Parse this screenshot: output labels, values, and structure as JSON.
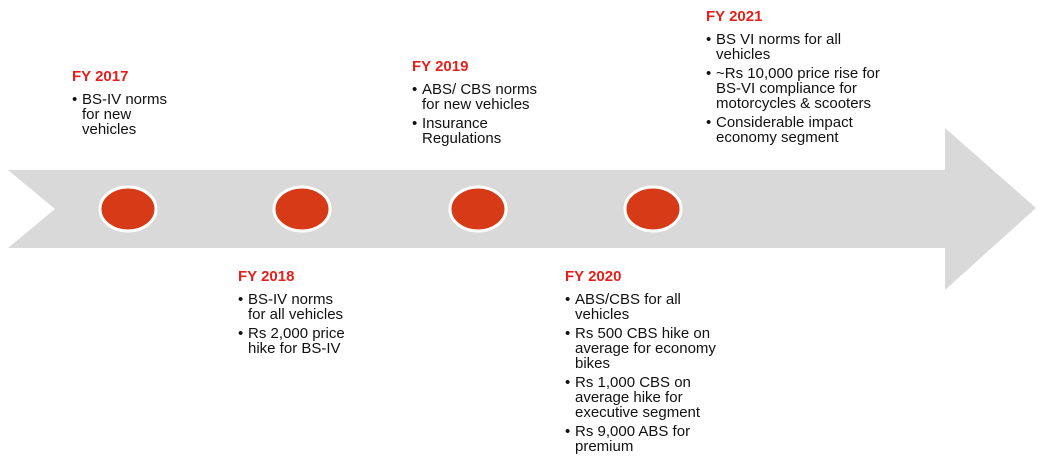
{
  "milestones": [
    {
      "label": "FY 2017",
      "bullets": [
        "BS-IV norms\nfor new\nvehicles"
      ]
    },
    {
      "label": "FY 2018",
      "bullets": [
        "BS-IV norms\nfor all vehicles",
        "Rs 2,000 price\nhike for BS-IV"
      ]
    },
    {
      "label": "FY 2019",
      "bullets": [
        "ABS/ CBS norms\nfor new vehicles",
        "Insurance\nRegulations"
      ]
    },
    {
      "label": "FY 2020",
      "bullets": [
        "ABS/CBS for all\nvehicles",
        "Rs 500 CBS hike on\naverage for economy\nbikes",
        "Rs 1,000 CBS on\naverage hike for\nexecutive segment",
        "Rs 9,000 ABS for\npremium"
      ]
    },
    {
      "label": "FY 2021",
      "bullets": [
        "BS VI norms for all\nvehicles",
        "~Rs 10,000 price rise for\nBS-VI compliance for\nmotorcycles & scooters",
        "Considerable impact\neconomy segment"
      ]
    }
  ]
}
